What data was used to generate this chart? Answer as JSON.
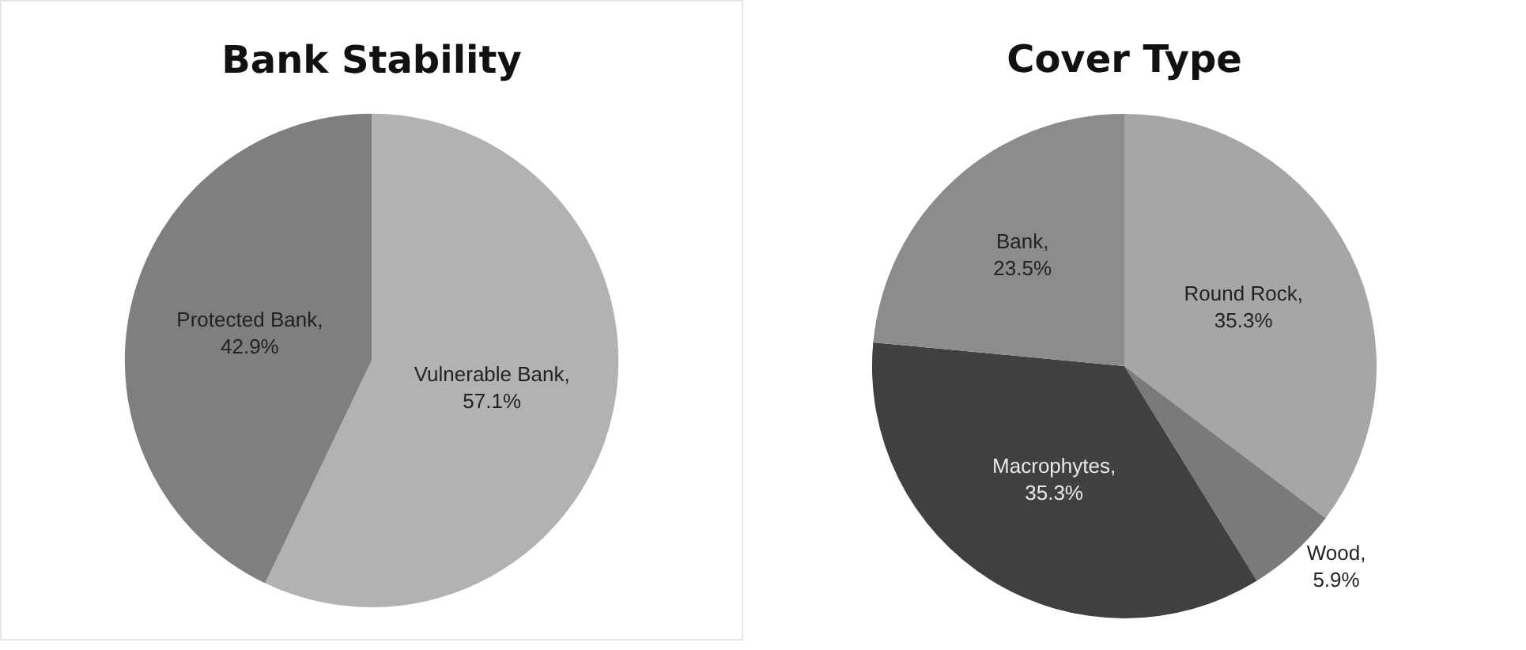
{
  "chart_data": [
    {
      "type": "pie",
      "title": "Bank Stability",
      "categories": [
        "Vulnerable Bank",
        "Protected Bank"
      ],
      "values": [
        57.1,
        42.9
      ],
      "colors": [
        "#b2b2b2",
        "#7f7f7f"
      ],
      "value_labels": [
        ", 57.1%",
        ", 42.9%"
      ],
      "legend": false
    },
    {
      "type": "pie",
      "title": "Cover Type",
      "categories": [
        "Round Rock",
        "Wood",
        "Macrophytes",
        "Bank"
      ],
      "values": [
        35.3,
        5.9,
        35.3,
        23.5
      ],
      "colors": [
        "#a6a6a6",
        "#7a7a7a",
        "#404040",
        "#8c8c8c"
      ],
      "value_labels": [
        ", 35.3%",
        ", 5.9%",
        ", 35.3%",
        ", 23.5%"
      ],
      "legend": false
    }
  ]
}
